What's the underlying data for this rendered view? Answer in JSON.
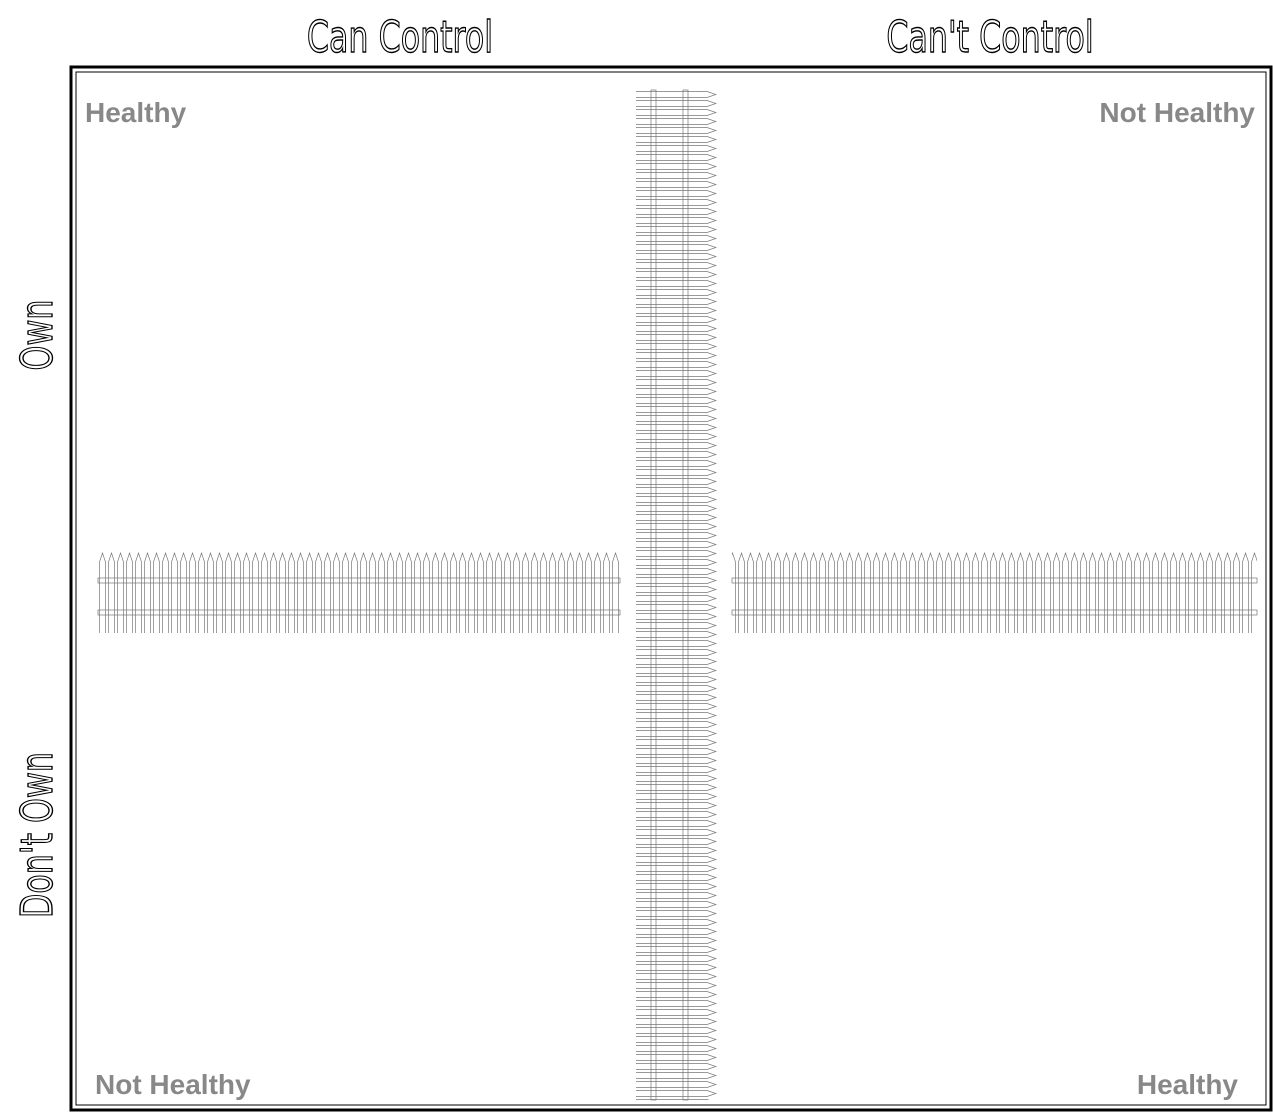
{
  "header": {
    "left": "Can Control",
    "right": "Can't Control"
  },
  "side": {
    "top": "Own",
    "bottom": "Don't Own"
  },
  "quadrants": {
    "top_left": "Healthy",
    "top_right": "Not Healthy",
    "bottom_left": "Not Healthy",
    "bottom_right": "Healthy"
  }
}
